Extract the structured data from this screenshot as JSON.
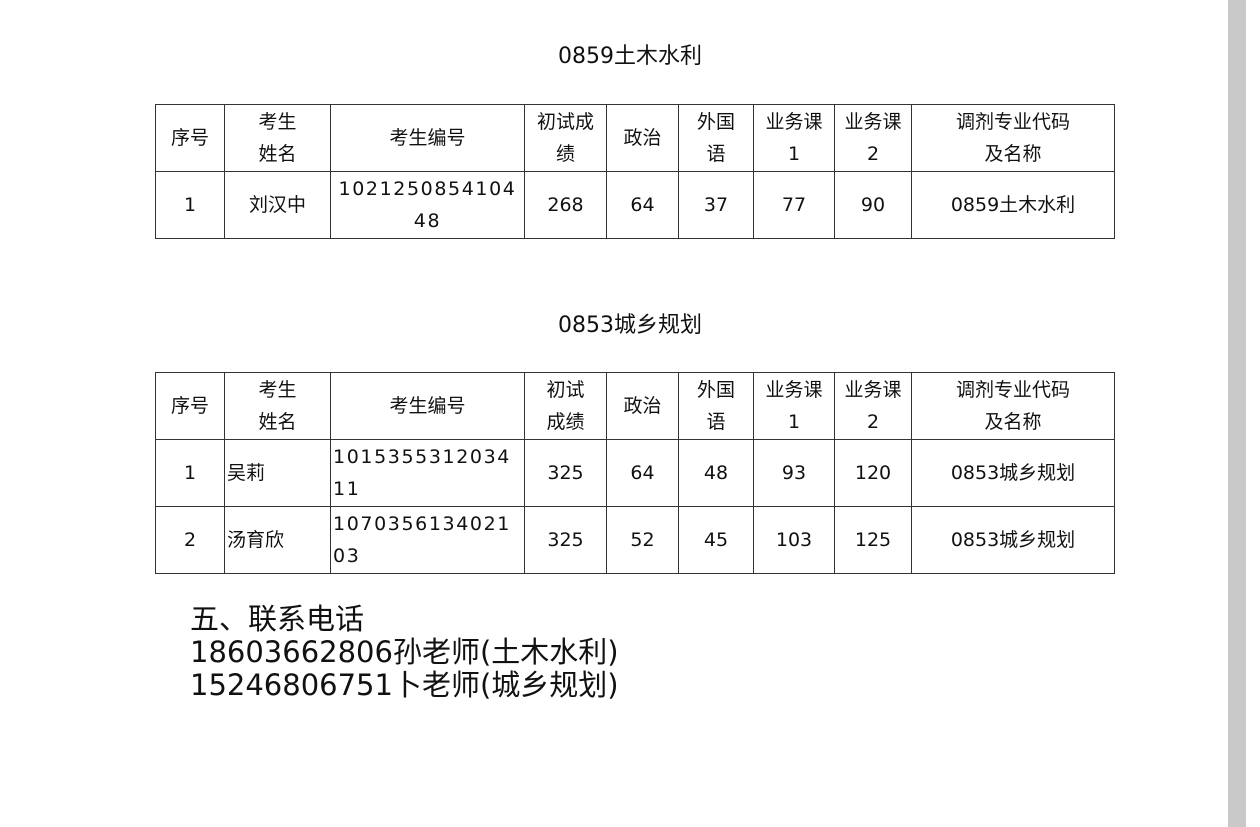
{
  "headers": [
    [
      "序号"
    ],
    [
      "考生",
      "姓名"
    ],
    [
      "考生编号"
    ],
    [
      "初试成",
      "绩"
    ],
    [
      "政治"
    ],
    [
      "外国",
      "语"
    ],
    [
      "业务课",
      "1"
    ],
    [
      "业务课",
      "2"
    ],
    [
      "调剂专业代码",
      "及名称"
    ]
  ],
  "headers2": [
    [
      "序号"
    ],
    [
      "考生",
      "姓名"
    ],
    [
      "考生编号"
    ],
    [
      "初试",
      "成绩"
    ],
    [
      "政治"
    ],
    [
      "外国",
      "语"
    ],
    [
      "业务课",
      "1"
    ],
    [
      "业务课",
      "2"
    ],
    [
      "调剂专业代码",
      "及名称"
    ]
  ],
  "tables": [
    {
      "title": "0859土木水利",
      "rows": [
        [
          "1",
          "刘汉中",
          "102125085410448",
          "268",
          "64",
          "37",
          "77",
          "90",
          "0859土木水利"
        ]
      ]
    },
    {
      "title": "0853城乡规划",
      "rows": [
        [
          "1",
          "吴莉",
          "101535531203411",
          "325",
          "64",
          "48",
          "93",
          "120",
          "0853城乡规划"
        ],
        [
          "2",
          "汤育欣",
          "107035613402103",
          "325",
          "52",
          "45",
          "103",
          "125",
          "0853城乡规划"
        ]
      ]
    }
  ],
  "contact": {
    "heading": "五、联系电话",
    "lines": [
      "18603662806孙老师(土木水利)",
      "15246806751卜老师(城乡规划)"
    ]
  }
}
